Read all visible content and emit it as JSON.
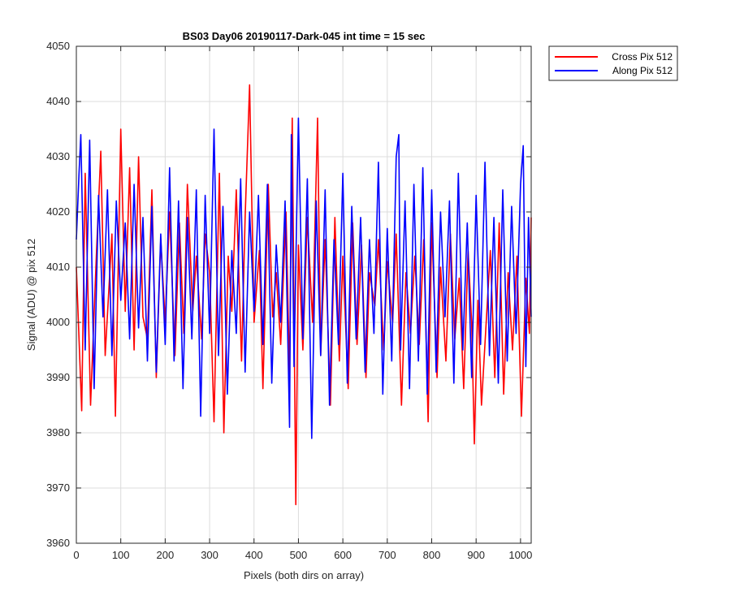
{
  "chart_data": {
    "type": "line",
    "title": "BS03 Day06 20190117-Dark-045 int time = 15 sec",
    "xlabel": "Pixels (both dirs on array)",
    "ylabel": "Signal (ADU) @ pix 512",
    "xlim": [
      0,
      1024
    ],
    "ylim": [
      3960,
      4050
    ],
    "xticks": [
      0,
      100,
      200,
      300,
      400,
      500,
      600,
      700,
      800,
      900,
      1000
    ],
    "yticks": [
      3960,
      3970,
      3980,
      3990,
      4000,
      4010,
      4020,
      4030,
      4040,
      4050
    ],
    "grid": true,
    "legend_position": "outside-top-right",
    "series": [
      {
        "name": "Cross Pix 512",
        "color": "#ff0000",
        "x": [
          0,
          12,
          20,
          32,
          45,
          55,
          65,
          80,
          88,
          100,
          110,
          120,
          130,
          140,
          150,
          160,
          170,
          180,
          190,
          200,
          210,
          222,
          232,
          242,
          250,
          262,
          270,
          282,
          290,
          300,
          310,
          322,
          332,
          342,
          350,
          360,
          372,
          380,
          390,
          400,
          412,
          420,
          432,
          442,
          450,
          460,
          472,
          480,
          486,
          494,
          500,
          510,
          520,
          532,
          543,
          550,
          560,
          572,
          582,
          592,
          600,
          612,
          622,
          632,
          642,
          652,
          660,
          672,
          680,
          692,
          700,
          712,
          720,
          732,
          742,
          752,
          762,
          772,
          782,
          792,
          800,
          812,
          820,
          832,
          842,
          852,
          862,
          872,
          882,
          890,
          896,
          904,
          912,
          922,
          932,
          942,
          952,
          962,
          972,
          982,
          992,
          1002,
          1012,
          1020,
          1024
        ],
        "y": [
          4010,
          3984,
          4027,
          3985,
          4012,
          4031,
          3994,
          4016,
          3983,
          4035,
          4002,
          4028,
          3995,
          4030,
          4001,
          3997,
          4024,
          3990,
          4015,
          4000,
          4020,
          3994,
          4018,
          3998,
          4025,
          4002,
          4012,
          3997,
          4016,
          4009,
          3982,
          4027,
          3980,
          4012,
          4002,
          4024,
          3993,
          4019,
          4043,
          4000,
          4013,
          3988,
          4025,
          4001,
          4009,
          3996,
          4020,
          3990,
          4037,
          3967,
          4014,
          3995,
          4019,
          4000,
          4037,
          3994,
          4015,
          3985,
          4019,
          3993,
          4012,
          3988,
          4018,
          3996,
          4014,
          3990,
          4009,
          4003,
          4015,
          3995,
          4011,
          4000,
          4016,
          3985,
          4009,
          3998,
          4012,
          3996,
          4015,
          3982,
          4018,
          3990,
          4010,
          3993,
          4016,
          3997,
          4008,
          3988,
          4013,
          4000,
          3978,
          4004,
          3985,
          3999,
          4013,
          3990,
          4018,
          3987,
          4009,
          3995,
          4012,
          3983,
          4008,
          3998,
          4019
        ]
      },
      {
        "name": "Along Pix 512",
        "color": "#0000ff",
        "x": [
          0,
          6,
          10,
          20,
          30,
          40,
          50,
          60,
          70,
          80,
          90,
          100,
          110,
          120,
          130,
          140,
          150,
          160,
          170,
          180,
          190,
          200,
          210,
          220,
          230,
          240,
          250,
          260,
          270,
          280,
          290,
          300,
          310,
          320,
          330,
          340,
          350,
          360,
          370,
          380,
          390,
          400,
          410,
          420,
          430,
          440,
          450,
          460,
          470,
          480,
          484,
          490,
          500,
          510,
          520,
          530,
          540,
          550,
          560,
          570,
          580,
          590,
          600,
          610,
          620,
          630,
          640,
          650,
          660,
          670,
          680,
          690,
          700,
          710,
          720,
          726,
          730,
          740,
          750,
          760,
          770,
          780,
          790,
          800,
          810,
          820,
          830,
          840,
          850,
          860,
          870,
          880,
          890,
          900,
          910,
          920,
          930,
          940,
          950,
          960,
          970,
          980,
          990,
          1000,
          1006,
          1012,
          1018,
          1024
        ],
        "y": [
          4015,
          4027,
          4034,
          3995,
          4033,
          3988,
          4023,
          4001,
          4024,
          3994,
          4022,
          4004,
          4018,
          3997,
          4025,
          3999,
          4019,
          3993,
          4021,
          3991,
          4016,
          3996,
          4028,
          3993,
          4022,
          3988,
          4019,
          3997,
          4024,
          3983,
          4023,
          3998,
          4035,
          3994,
          4021,
          3987,
          4013,
          3998,
          4026,
          3991,
          4020,
          4002,
          4023,
          3996,
          4025,
          3989,
          4014,
          4000,
          4022,
          3981,
          4034,
          3992,
          4037,
          3997,
          4026,
          3979,
          4022,
          3994,
          4024,
          3985,
          4015,
          3996,
          4027,
          3989,
          4021,
          3997,
          4019,
          3991,
          4015,
          3998,
          4029,
          3987,
          4017,
          3993,
          4030,
          4034,
          3995,
          4022,
          3988,
          4025,
          3993,
          4028,
          3987,
          4024,
          3991,
          4020,
          4001,
          4022,
          3989,
          4027,
          3995,
          4018,
          3990,
          4023,
          3996,
          4029,
          3994,
          4019,
          3989,
          4024,
          3993,
          4021,
          3998,
          4025,
          4032,
          3992,
          4019,
          4001
        ]
      }
    ]
  }
}
